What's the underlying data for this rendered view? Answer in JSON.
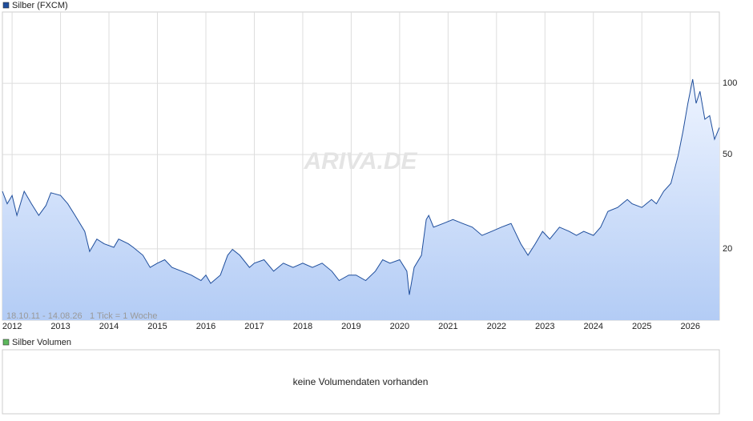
{
  "chart_data": {
    "type": "line",
    "date_range": "18.10.11 - 14.08.26",
    "tick_note": "1 Tick = 1 Woche",
    "watermark": "ARIVA.DE",
    "yscale": "log",
    "grid": true,
    "xlim": [
      2011.8,
      2026.6
    ],
    "xticks": [
      2012,
      2013,
      2014,
      2015,
      2016,
      2017,
      2018,
      2019,
      2020,
      2021,
      2022,
      2023,
      2024,
      2025,
      2026
    ],
    "ylim": [
      10,
      200
    ],
    "yticks": [
      20,
      50,
      100
    ],
    "x": [
      2011.8,
      2011.9,
      2012.0,
      2012.1,
      2012.25,
      2012.4,
      2012.55,
      2012.7,
      2012.8,
      2013.0,
      2013.15,
      2013.3,
      2013.5,
      2013.6,
      2013.75,
      2013.9,
      2014.1,
      2014.2,
      2014.4,
      2014.5,
      2014.7,
      2014.85,
      2015.0,
      2015.15,
      2015.3,
      2015.5,
      2015.7,
      2015.9,
      2016.0,
      2016.1,
      2016.3,
      2016.45,
      2016.55,
      2016.7,
      2016.9,
      2017.0,
      2017.2,
      2017.4,
      2017.6,
      2017.8,
      2018.0,
      2018.2,
      2018.4,
      2018.6,
      2018.75,
      2018.95,
      2019.1,
      2019.3,
      2019.5,
      2019.65,
      2019.8,
      2020.0,
      2020.15,
      2020.2,
      2020.3,
      2020.45,
      2020.55,
      2020.6,
      2020.7,
      2020.9,
      2021.1,
      2021.3,
      2021.5,
      2021.7,
      2021.9,
      2022.1,
      2022.3,
      2022.5,
      2022.65,
      2022.8,
      2022.95,
      2023.1,
      2023.3,
      2023.5,
      2023.65,
      2023.8,
      2024.0,
      2024.15,
      2024.3,
      2024.5,
      2024.7,
      2024.8,
      2025.0,
      2025.2,
      2025.3,
      2025.45,
      2025.6,
      2025.75,
      2025.85,
      2025.95,
      2026.05,
      2026.12,
      2026.2,
      2026.3,
      2026.4,
      2026.5,
      2026.6
    ],
    "series": [
      {
        "name": "Silber (FXCM)",
        "color": "#1f4e9c",
        "values": [
          35,
          31,
          33.6,
          27.7,
          35,
          31,
          27.7,
          30.5,
          34.5,
          33.6,
          31,
          27.7,
          23.7,
          19.5,
          22,
          21,
          20.3,
          22,
          21,
          20.3,
          18.8,
          16.7,
          17.4,
          18,
          16.7,
          16.1,
          15.5,
          14.7,
          15.5,
          14.3,
          15.5,
          18.8,
          19.9,
          18.8,
          16.7,
          17.4,
          18,
          16.1,
          17.4,
          16.7,
          17.4,
          16.7,
          17.4,
          16.1,
          14.7,
          15.5,
          15.5,
          14.7,
          16.1,
          18,
          17.4,
          18,
          16.1,
          12.8,
          16.7,
          18.8,
          26.6,
          27.7,
          24.7,
          25.6,
          26.6,
          25.6,
          24.7,
          22.8,
          23.7,
          24.7,
          25.6,
          21,
          18.8,
          21,
          23.7,
          22,
          24.7,
          23.7,
          22.8,
          23.7,
          22.8,
          24.7,
          28.8,
          29.9,
          32.3,
          31,
          29.9,
          32.3,
          31,
          35,
          37.8,
          49.6,
          62.7,
          82.3,
          104,
          82.3,
          92.5,
          70.5,
          73,
          58,
          65
        ]
      }
    ]
  },
  "volume_panel": {
    "legend": "Silber Volumen",
    "color": "#5cb85c",
    "message": "keine Volumendaten vorhanden"
  }
}
